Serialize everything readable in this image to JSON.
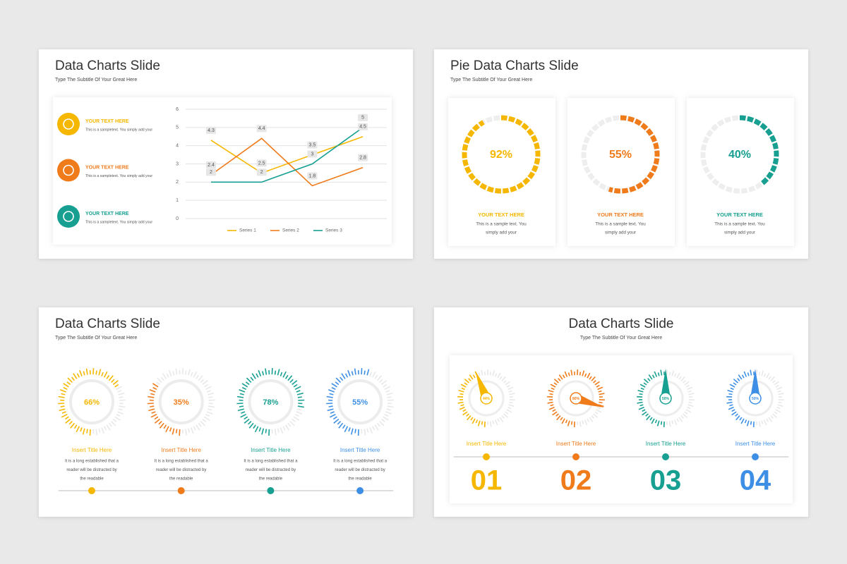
{
  "slides": [
    {
      "title": "Data Charts Slide",
      "subtitle": "Type The Subtitle Of Your Great Here",
      "items": [
        {
          "title": "YOUR TEXT HERE",
          "text": "This is a sampletext. You simply add your"
        },
        {
          "title": "YOUR TEXT HERE",
          "text": "This is a sampletext. You simply add your"
        },
        {
          "title": "YOUR TEXT HERE",
          "text": "This is a sampletext. You simply add your"
        }
      ]
    },
    {
      "title": "Pie Data Charts Slide",
      "subtitle": "Type The Subtitle Of Your Great Here",
      "items": [
        {
          "title": "YOUR TEXT HERE",
          "lines": [
            "This is a sample text. You",
            "simply add your"
          ]
        },
        {
          "title": "YOUR TEXT HERE",
          "lines": [
            "This is a sample text. You",
            "simply add your"
          ]
        },
        {
          "title": "YOUR TEXT HERE",
          "lines": [
            "This is a sample text. You",
            "simply add your"
          ]
        }
      ]
    },
    {
      "title": "Data Charts Slide",
      "subtitle": "Type The Subtitle Of Your Great Here",
      "items": [
        {
          "title": "Insert Title Here",
          "lines": [
            "It is a long established that a",
            "reader will be distracted by",
            "the readable"
          ]
        },
        {
          "title": "Insert Title Here",
          "lines": [
            "It is a long established that a",
            "reader will be distracted by",
            "the readable"
          ]
        },
        {
          "title": "Insert Title Here",
          "lines": [
            "It is a long established that a",
            "reader will be distracted by",
            "the readable"
          ]
        },
        {
          "title": "Insert Title Here",
          "lines": [
            "It is a long established that a",
            "reader will be distracted by",
            "the readable"
          ]
        }
      ]
    },
    {
      "title": "Data Charts Slide",
      "subtitle": "Type The Subtitle Of Your Great Here",
      "items": [
        {
          "title": "Insert Title Here",
          "number": "01"
        },
        {
          "title": "Insert Title Here",
          "number": "02"
        },
        {
          "title": "Insert Title Here",
          "number": "03"
        },
        {
          "title": "Insert Title Here",
          "number": "04"
        }
      ]
    }
  ],
  "chart_data": [
    {
      "type": "line",
      "categories": [
        null,
        null,
        null,
        null
      ],
      "series": [
        {
          "name": "Series 1",
          "color": "#f5b700",
          "values": [
            4.3,
            2.5,
            3.5,
            4.5
          ]
        },
        {
          "name": "Series 2",
          "color": "#ef7b1b",
          "values": [
            2.4,
            4.4,
            1.8,
            2.8
          ]
        },
        {
          "name": "Series 3",
          "color": "#17a091",
          "values": [
            2,
            2,
            3,
            5
          ]
        }
      ],
      "ylim": [
        0,
        6
      ],
      "yticks": [
        0,
        1,
        2,
        3,
        4,
        5,
        6
      ],
      "grid": true,
      "legend": "bottom"
    },
    {
      "type": "donut",
      "values": [
        92,
        55,
        40
      ],
      "value_labels": [
        "92%",
        "55%",
        "40%"
      ],
      "colors": [
        "#f5b700",
        "#ef7b1b",
        "#17a091"
      ]
    },
    {
      "type": "gauge",
      "values": [
        66,
        35,
        78,
        55
      ],
      "value_labels": [
        "66%",
        "35%",
        "78%",
        "55%"
      ],
      "colors": [
        "#f5b700",
        "#ef7b1b",
        "#17a091",
        "#3d8fe6"
      ]
    },
    {
      "type": "pointer",
      "values": [
        44,
        80,
        50,
        50
      ],
      "value_labels": [
        "44%",
        "80%",
        "50%",
        "50%"
      ],
      "colors": [
        "#f5b700",
        "#ef7b1b",
        "#17a091",
        "#3d8fe6"
      ]
    }
  ]
}
